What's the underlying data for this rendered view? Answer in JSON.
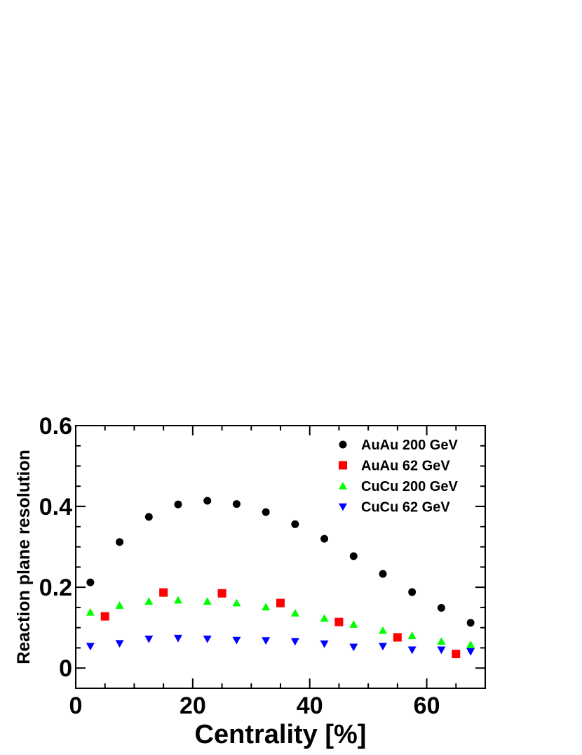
{
  "chart_data": {
    "type": "scatter",
    "xlabel": "Centrality [%]",
    "ylabel": "Reaction plane resolution",
    "xlim": [
      0,
      70
    ],
    "ylim": [
      -0.05,
      0.6
    ],
    "x_ticks": [
      0,
      20,
      40,
      60
    ],
    "x_tick_labels": [
      "0",
      "20",
      "40",
      "60"
    ],
    "y_ticks": [
      0,
      0.2,
      0.4,
      0.6
    ],
    "y_tick_labels": [
      "0",
      "0.2",
      "0.4",
      "0.6"
    ],
    "legend_position": "top-right",
    "series": [
      {
        "name": "AuAu 200 GeV",
        "marker": "circle",
        "color": "#000000",
        "x": [
          2.5,
          7.5,
          12.5,
          17.5,
          22.5,
          27.5,
          32.5,
          37.5,
          42.5,
          47.5,
          52.5,
          57.5,
          62.5,
          67.5
        ],
        "y": [
          0.212,
          0.312,
          0.374,
          0.405,
          0.414,
          0.406,
          0.386,
          0.356,
          0.32,
          0.277,
          0.233,
          0.188,
          0.149,
          0.112
        ]
      },
      {
        "name": "AuAu 62 GeV",
        "marker": "square",
        "color": "#ff0000",
        "x": [
          5,
          15,
          25,
          35,
          45,
          55,
          65
        ],
        "y": [
          0.128,
          0.187,
          0.185,
          0.161,
          0.114,
          0.076,
          0.035
        ]
      },
      {
        "name": "CuCu 200 GeV",
        "marker": "triangle-up",
        "color": "#00ff00",
        "x": [
          2.5,
          7.5,
          12.5,
          17.5,
          22.5,
          27.5,
          32.5,
          37.5,
          42.5,
          47.5,
          52.5,
          57.5,
          62.5,
          67.5
        ],
        "y": [
          0.138,
          0.155,
          0.165,
          0.168,
          0.165,
          0.161,
          0.151,
          0.136,
          0.123,
          0.108,
          0.093,
          0.08,
          0.066,
          0.058
        ]
      },
      {
        "name": "CuCu 62 GeV",
        "marker": "triangle-down",
        "color": "#0000ff",
        "x": [
          2.5,
          7.5,
          12.5,
          17.5,
          22.5,
          27.5,
          32.5,
          37.5,
          42.5,
          47.5,
          52.5,
          57.5,
          62.5,
          67.5
        ],
        "y": [
          0.054,
          0.061,
          0.072,
          0.074,
          0.072,
          0.069,
          0.068,
          0.066,
          0.06,
          0.052,
          0.054,
          0.045,
          0.045,
          0.041
        ]
      }
    ]
  }
}
